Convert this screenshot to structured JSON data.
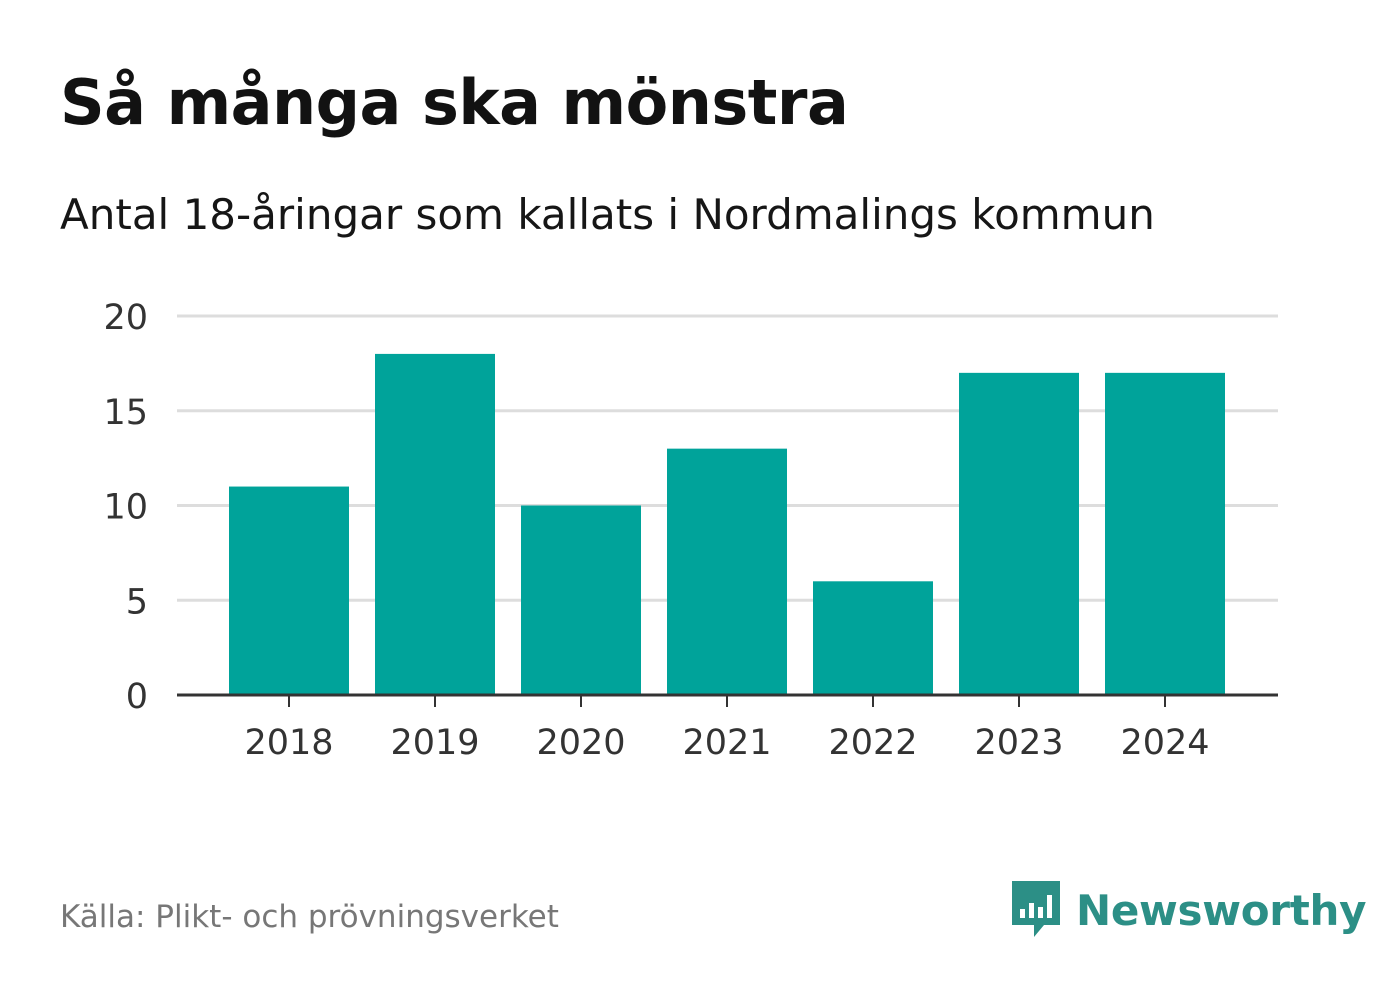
{
  "header": {
    "title": "Så många ska mönstra",
    "subtitle": "Antal 18-åringar som kallats i Nordmalings kommun"
  },
  "footer": {
    "source": "Källa: Plikt- och prövningsverket",
    "brand": "Newsworthy",
    "brand_icon": "newsworthy-logo-icon"
  },
  "colors": {
    "bar": "#00a39a",
    "grid": "#dddddd",
    "axis": "#333333",
    "brand": "#2c8f86"
  },
  "chart_data": {
    "type": "bar",
    "title": "Så många ska mönstra",
    "subtitle": "Antal 18-åringar som kallats i Nordmalings kommun",
    "xlabel": "",
    "ylabel": "",
    "categories": [
      "2018",
      "2019",
      "2020",
      "2021",
      "2022",
      "2023",
      "2024"
    ],
    "values": [
      11,
      18,
      10,
      13,
      6,
      17,
      17
    ],
    "ylim": [
      0,
      20
    ],
    "yticks": [
      0,
      5,
      10,
      15,
      20
    ],
    "grid": true,
    "legend": "none"
  }
}
